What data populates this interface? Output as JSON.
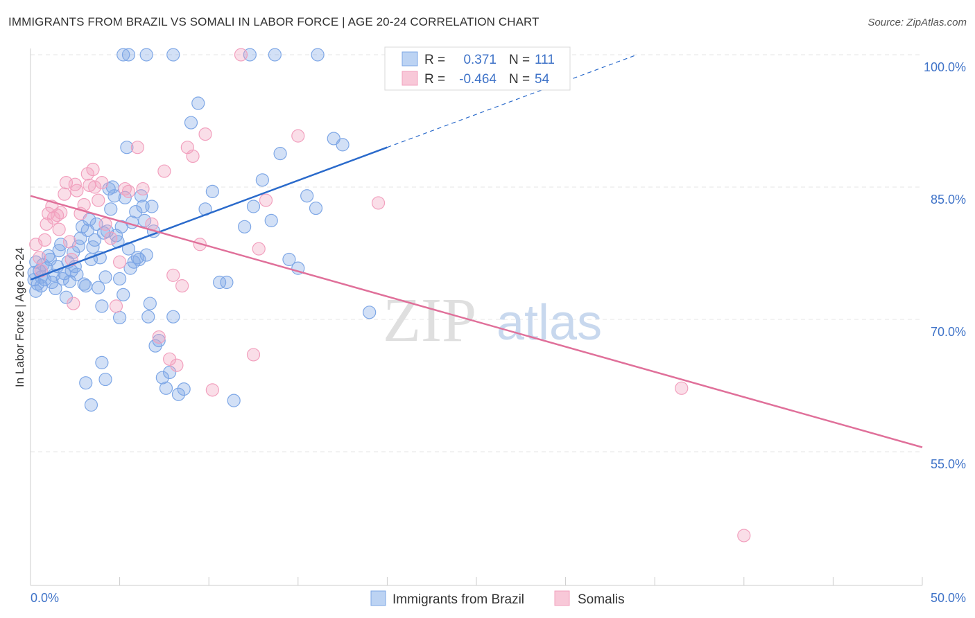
{
  "title": "IMMIGRANTS FROM BRAZIL VS SOMALI IN LABOR FORCE | AGE 20-24 CORRELATION CHART",
  "source": "Source: ZipAtlas.com",
  "watermark": {
    "zip": "ZIP",
    "atlas": "atlas"
  },
  "chart_data": {
    "type": "scatter",
    "ylabel": "In Labor Force | Age 20-24",
    "xlabel": "",
    "xlim": [
      0,
      50
    ],
    "ylim": [
      40,
      100
    ],
    "x_tick_labels": [
      "0.0%",
      "50.0%"
    ],
    "y_ticks": [
      55,
      70,
      85,
      100
    ],
    "y_tick_labels": [
      "55.0%",
      "70.0%",
      "85.0%",
      "100.0%"
    ],
    "grid": true,
    "legend": {
      "position": "top-center",
      "entries": [
        {
          "r_label": "R =",
          "r_value": "0.371",
          "n_label": "N =",
          "n_value": "111"
        },
        {
          "r_label": "R =",
          "r_value": "-0.464",
          "n_label": "N =",
          "n_value": "54"
        }
      ]
    },
    "series": [
      {
        "name": "Immigrants from Brazil",
        "color": "#7ea7e6",
        "line_color": "#2a6acb",
        "trend": {
          "x_solid": [
            0,
            20
          ],
          "y_solid": [
            74.5,
            89.5
          ],
          "x_dashed": [
            20,
            34
          ],
          "y_dashed": [
            89.5,
            100
          ]
        },
        "points": [
          [
            0.2,
            75.3
          ],
          [
            0.2,
            74.5
          ],
          [
            0.3,
            73.2
          ],
          [
            0.3,
            76.5
          ],
          [
            0.4,
            74.0
          ],
          [
            0.5,
            75.5
          ],
          [
            0.6,
            74.8
          ],
          [
            0.6,
            73.8
          ],
          [
            0.7,
            76.2
          ],
          [
            0.8,
            74.5
          ],
          [
            0.9,
            75.8
          ],
          [
            1.0,
            77.2
          ],
          [
            1.1,
            76.8
          ],
          [
            1.2,
            74.2
          ],
          [
            1.3,
            75.0
          ],
          [
            1.4,
            73.5
          ],
          [
            1.5,
            76.0
          ],
          [
            1.6,
            77.8
          ],
          [
            1.7,
            78.5
          ],
          [
            1.8,
            74.6
          ],
          [
            1.9,
            75.2
          ],
          [
            2.0,
            72.5
          ],
          [
            2.1,
            76.5
          ],
          [
            2.2,
            74.3
          ],
          [
            2.3,
            75.5
          ],
          [
            2.4,
            77.6
          ],
          [
            2.5,
            76.0
          ],
          [
            2.6,
            75.1
          ],
          [
            2.7,
            78.3
          ],
          [
            2.8,
            79.2
          ],
          [
            2.9,
            80.5
          ],
          [
            3.0,
            74.0
          ],
          [
            3.1,
            73.8
          ],
          [
            3.2,
            80.1
          ],
          [
            3.3,
            81.3
          ],
          [
            3.4,
            76.8
          ],
          [
            3.5,
            78.2
          ],
          [
            3.6,
            79.0
          ],
          [
            3.7,
            80.8
          ],
          [
            3.8,
            73.6
          ],
          [
            3.9,
            77.0
          ],
          [
            4.0,
            71.5
          ],
          [
            4.1,
            79.8
          ],
          [
            4.2,
            74.8
          ],
          [
            4.3,
            80.0
          ],
          [
            4.4,
            84.8
          ],
          [
            4.5,
            82.5
          ],
          [
            4.6,
            85.0
          ],
          [
            4.7,
            84.0
          ],
          [
            4.8,
            79.5
          ],
          [
            4.9,
            78.8
          ],
          [
            5.0,
            70.2
          ],
          [
            5.1,
            80.5
          ],
          [
            5.2,
            72.8
          ],
          [
            5.3,
            83.8
          ],
          [
            5.4,
            89.5
          ],
          [
            5.5,
            78.0
          ],
          [
            5.6,
            75.8
          ],
          [
            5.7,
            81.0
          ],
          [
            5.8,
            76.5
          ],
          [
            5.9,
            82.2
          ],
          [
            6.0,
            77.0
          ],
          [
            6.1,
            76.8
          ],
          [
            6.2,
            84.0
          ],
          [
            6.3,
            82.8
          ],
          [
            6.4,
            81.2
          ],
          [
            6.5,
            77.3
          ],
          [
            6.6,
            70.3
          ],
          [
            6.7,
            71.8
          ],
          [
            6.8,
            82.8
          ],
          [
            6.9,
            80.0
          ],
          [
            7.0,
            67.0
          ],
          [
            7.2,
            67.6
          ],
          [
            7.4,
            63.4
          ],
          [
            7.6,
            62.2
          ],
          [
            7.8,
            64.0
          ],
          [
            8.0,
            70.3
          ],
          [
            8.3,
            61.5
          ],
          [
            8.6,
            62.1
          ],
          [
            9.0,
            92.3
          ],
          [
            9.4,
            94.5
          ],
          [
            9.8,
            82.5
          ],
          [
            10.2,
            84.5
          ],
          [
            10.6,
            74.2
          ],
          [
            11.0,
            74.2
          ],
          [
            11.4,
            60.8
          ],
          [
            12.0,
            80.5
          ],
          [
            12.5,
            82.8
          ],
          [
            13.0,
            85.8
          ],
          [
            13.5,
            81.2
          ],
          [
            14.0,
            88.8
          ],
          [
            14.5,
            76.8
          ],
          [
            15.0,
            75.8
          ],
          [
            15.5,
            84.0
          ],
          [
            16.0,
            82.6
          ],
          [
            17.0,
            90.5
          ],
          [
            17.5,
            89.8
          ],
          [
            19.0,
            70.8
          ],
          [
            5.2,
            100
          ],
          [
            5.5,
            100
          ],
          [
            6.5,
            100
          ],
          [
            8.0,
            100
          ],
          [
            12.3,
            100
          ],
          [
            13.7,
            100
          ],
          [
            16.1,
            100
          ],
          [
            3.1,
            62.8
          ],
          [
            3.4,
            60.3
          ],
          [
            4.0,
            65.1
          ],
          [
            4.2,
            63.2
          ],
          [
            5.0,
            74.6
          ]
        ]
      },
      {
        "name": "Somalis",
        "color": "#f2a0be",
        "line_color": "#e0709a",
        "trend": {
          "x_solid": [
            0,
            50
          ],
          "y_solid": [
            84.0,
            55.5
          ]
        },
        "points": [
          [
            0.3,
            78.5
          ],
          [
            0.5,
            77.0
          ],
          [
            0.6,
            75.5
          ],
          [
            0.8,
            79.0
          ],
          [
            0.9,
            80.8
          ],
          [
            1.0,
            82.0
          ],
          [
            1.2,
            82.8
          ],
          [
            1.3,
            81.5
          ],
          [
            1.5,
            81.8
          ],
          [
            1.6,
            80.2
          ],
          [
            1.7,
            82.1
          ],
          [
            1.9,
            84.2
          ],
          [
            2.0,
            85.5
          ],
          [
            2.2,
            78.8
          ],
          [
            2.3,
            76.8
          ],
          [
            2.5,
            85.3
          ],
          [
            2.6,
            84.6
          ],
          [
            2.8,
            82.0
          ],
          [
            3.0,
            83.0
          ],
          [
            3.2,
            86.5
          ],
          [
            3.3,
            85.2
          ],
          [
            3.5,
            87.0
          ],
          [
            3.6,
            85.0
          ],
          [
            3.8,
            83.5
          ],
          [
            4.0,
            85.5
          ],
          [
            4.2,
            80.8
          ],
          [
            4.5,
            79.2
          ],
          [
            4.8,
            71.5
          ],
          [
            5.0,
            76.5
          ],
          [
            5.3,
            84.8
          ],
          [
            5.5,
            84.5
          ],
          [
            6.0,
            89.5
          ],
          [
            6.3,
            84.8
          ],
          [
            6.8,
            80.8
          ],
          [
            7.2,
            68.0
          ],
          [
            7.5,
            86.8
          ],
          [
            7.8,
            65.5
          ],
          [
            8.0,
            75.0
          ],
          [
            8.2,
            64.8
          ],
          [
            8.5,
            73.8
          ],
          [
            8.8,
            89.5
          ],
          [
            9.1,
            88.5
          ],
          [
            9.5,
            78.5
          ],
          [
            9.8,
            91.0
          ],
          [
            10.2,
            62.0
          ],
          [
            11.8,
            100
          ],
          [
            12.5,
            66.0
          ],
          [
            12.8,
            78.0
          ],
          [
            13.2,
            83.5
          ],
          [
            15.0,
            90.8
          ],
          [
            19.5,
            83.2
          ],
          [
            36.5,
            62.2
          ],
          [
            40.0,
            45.5
          ],
          [
            2.4,
            71.8
          ]
        ]
      }
    ]
  },
  "bottom_legend": [
    {
      "label": "Immigrants from Brazil",
      "color": "#7ea7e6"
    },
    {
      "label": "Somalis",
      "color": "#f2a0be"
    }
  ]
}
